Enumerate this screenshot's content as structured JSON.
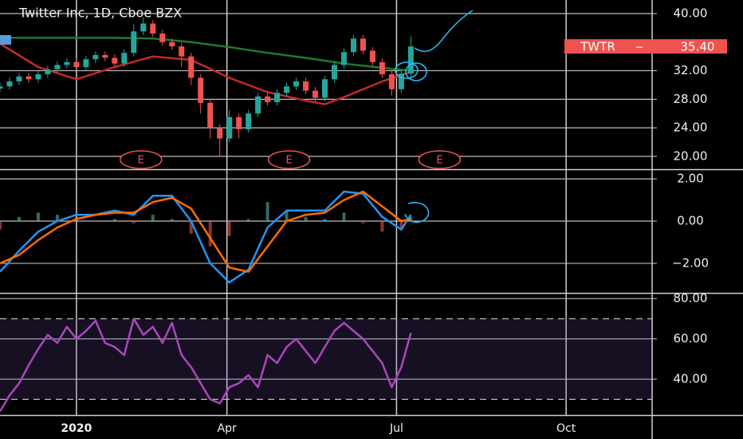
{
  "chart_data": [
    {
      "type": "candlestick",
      "title": "Twitter Inc, 1D, Cboe BZX",
      "xlim": [
        -32,
        241
      ],
      "xticks": [
        {
          "value": 0,
          "label": "2020"
        },
        {
          "value": 63,
          "label": "Apr"
        },
        {
          "value": 134,
          "label": "Jul"
        },
        {
          "value": 205,
          "label": "Oct"
        }
      ],
      "ylim": [
        18.2,
        41.9
      ],
      "yticks": [
        {
          "value": 20,
          "label": "20.00"
        },
        {
          "value": 24,
          "label": "24.00"
        },
        {
          "value": 28,
          "label": "28.00"
        },
        {
          "value": 32,
          "label": "32.00"
        },
        {
          "value": 40,
          "label": "40.00"
        }
      ],
      "up_color": "#26a69a",
      "down_color": "#ef5350",
      "x": [
        -32,
        -28,
        -24,
        -20,
        -16,
        -12,
        -8,
        -4,
        0,
        4,
        8,
        12,
        16,
        20,
        24,
        28,
        32,
        36,
        40,
        44,
        48,
        52,
        56,
        60,
        64,
        68,
        72,
        76,
        80,
        84,
        88,
        92,
        96,
        100,
        104,
        108,
        112,
        116,
        120,
        124,
        128,
        132,
        136,
        140
      ],
      "open": [
        29.5,
        29.8,
        30.5,
        31.2,
        30.8,
        31.5,
        32.2,
        32.8,
        33.2,
        32.5,
        33.6,
        34.2,
        33.8,
        33.0,
        34.5,
        37.5,
        38.6,
        37.2,
        36.0,
        35.4,
        34.0,
        31.0,
        27.5,
        24.0,
        22.5,
        25.5,
        23.8,
        26.0,
        28.4,
        27.6,
        28.9,
        29.8,
        30.5,
        29.2,
        28.2,
        30.8,
        32.8,
        34.6,
        36.5,
        34.8,
        33.2,
        31.5,
        29.4,
        31.6
      ],
      "high": [
        30.3,
        31.0,
        31.7,
        31.7,
        32.0,
        32.7,
        33.3,
        33.7,
        33.7,
        34.1,
        34.7,
        34.7,
        34.3,
        35.0,
        38.5,
        39.5,
        39.1,
        37.7,
        36.5,
        35.9,
        34.5,
        31.5,
        28.0,
        24.5,
        26.5,
        26.0,
        26.5,
        28.9,
        28.9,
        29.4,
        30.3,
        31.0,
        31.0,
        29.7,
        31.3,
        33.3,
        35.1,
        37.0,
        37.0,
        35.3,
        33.7,
        32.0,
        32.1,
        36.8
      ],
      "low": [
        29.0,
        29.3,
        30.0,
        30.3,
        30.3,
        31.0,
        31.7,
        32.3,
        32.0,
        32.0,
        33.1,
        33.3,
        32.5,
        32.5,
        34.0,
        37.0,
        36.7,
        35.5,
        34.9,
        32.5,
        30.0,
        26.0,
        22.5,
        20.0,
        22.0,
        22.5,
        23.3,
        25.5,
        27.1,
        27.1,
        28.4,
        29.3,
        28.7,
        27.7,
        27.7,
        30.3,
        32.3,
        34.1,
        34.3,
        32.7,
        31.0,
        28.5,
        28.9,
        31.1
      ],
      "close": [
        29.8,
        30.5,
        31.2,
        30.8,
        31.5,
        32.2,
        32.8,
        33.2,
        32.5,
        33.6,
        34.2,
        33.8,
        33.0,
        34.5,
        37.5,
        38.6,
        37.2,
        36.0,
        35.4,
        34.0,
        31.0,
        27.5,
        24.0,
        22.5,
        25.5,
        23.8,
        26.0,
        28.4,
        27.6,
        28.9,
        29.8,
        30.5,
        29.2,
        28.2,
        30.8,
        32.8,
        34.6,
        36.5,
        34.8,
        33.2,
        31.5,
        29.4,
        31.6,
        35.4
      ],
      "series": [
        {
          "color": "#1e7a2e",
          "x": [
            -32,
            -16,
            0,
            16,
            32,
            48,
            64,
            80,
            96,
            112,
            128,
            140
          ],
          "values": [
            36.6,
            36.6,
            36.6,
            36.6,
            36.5,
            36.0,
            35.3,
            34.5,
            33.8,
            33.0,
            32.4,
            32.0
          ]
        },
        {
          "color": "#c62828",
          "x": [
            -32,
            -16,
            0,
            16,
            32,
            48,
            64,
            80,
            96,
            104,
            112,
            128,
            140
          ],
          "values": [
            35.8,
            32.5,
            30.8,
            32.5,
            34.0,
            33.5,
            31.0,
            29.0,
            27.8,
            27.3,
            28.3,
            30.5,
            31.8
          ]
        }
      ],
      "events": [
        {
          "x": 27,
          "label": "E"
        },
        {
          "x": 89,
          "label": "E"
        },
        {
          "x": 152,
          "label": "E"
        }
      ],
      "price_tag": {
        "symbol": "TWTR",
        "value": 35.4,
        "label": "35.40",
        "color": "#ef5350"
      }
    },
    {
      "type": "line",
      "ylim": [
        -3.4,
        2.42
      ],
      "yticks": [
        {
          "value": -2,
          "label": "−2.00"
        },
        {
          "value": 0,
          "label": "0.00"
        },
        {
          "value": 2,
          "label": "2.00"
        }
      ],
      "series": [
        {
          "type": "histogram",
          "color": "#4db6ac",
          "negative_color": "#ef5350",
          "x": [
            -32,
            -24,
            -16,
            -8,
            0,
            8,
            16,
            24,
            32,
            40,
            48,
            56,
            64,
            72,
            80,
            88,
            96,
            104,
            112,
            120,
            128,
            136,
            140
          ],
          "values": [
            -0.4,
            0.2,
            0.4,
            0.3,
            0.2,
            0.0,
            0.1,
            -0.1,
            0.3,
            0.1,
            -0.6,
            -1.2,
            -0.7,
            0.1,
            0.9,
            0.5,
            0.2,
            0.1,
            0.4,
            -0.1,
            -0.5,
            -0.4,
            0.2
          ]
        },
        {
          "color": "#2196f3",
          "x": [
            -32,
            -24,
            -16,
            -8,
            0,
            8,
            16,
            24,
            32,
            40,
            48,
            56,
            64,
            72,
            80,
            88,
            96,
            104,
            112,
            120,
            128,
            136,
            140
          ],
          "values": [
            -2.4,
            -1.4,
            -0.5,
            0.0,
            0.3,
            0.3,
            0.5,
            0.3,
            1.2,
            1.2,
            0.0,
            -2.0,
            -2.9,
            -2.3,
            -0.3,
            0.5,
            0.5,
            0.5,
            1.4,
            1.3,
            0.2,
            -0.4,
            0.3
          ]
        },
        {
          "color": "#ff6d00",
          "x": [
            -32,
            -24,
            -16,
            -8,
            0,
            8,
            16,
            24,
            32,
            40,
            48,
            56,
            64,
            72,
            80,
            88,
            96,
            104,
            112,
            120,
            128,
            136,
            140
          ],
          "values": [
            -2.0,
            -1.6,
            -0.9,
            -0.3,
            0.1,
            0.3,
            0.4,
            0.4,
            0.9,
            1.1,
            0.6,
            -0.8,
            -2.2,
            -2.4,
            -1.2,
            0.0,
            0.3,
            0.4,
            1.0,
            1.4,
            0.7,
            0.0,
            0.1
          ]
        }
      ]
    },
    {
      "type": "line",
      "ylim": [
        22.2,
        82.4
      ],
      "yticks": [
        {
          "value": 40,
          "label": "40.00"
        },
        {
          "value": 60,
          "label": "60.00"
        },
        {
          "value": 80,
          "label": "80.00"
        }
      ],
      "band": [
        30,
        70
      ],
      "band_color": "#7e57c2",
      "series": [
        {
          "color": "#ab47bc",
          "x": [
            -32,
            -28,
            -24,
            -20,
            -16,
            -12,
            -8,
            -4,
            0,
            4,
            8,
            12,
            16,
            20,
            24,
            28,
            32,
            36,
            40,
            44,
            48,
            52,
            56,
            60,
            64,
            68,
            72,
            76,
            80,
            84,
            88,
            92,
            96,
            100,
            104,
            108,
            112,
            116,
            120,
            124,
            128,
            132,
            136,
            140
          ],
          "values": [
            24,
            32,
            38,
            47,
            55,
            62,
            58,
            66,
            60,
            64,
            69,
            58,
            56,
            52,
            70,
            62,
            66,
            58,
            68,
            52,
            46,
            38,
            30,
            28,
            36,
            38,
            42,
            36,
            52,
            48,
            56,
            60,
            54,
            48,
            56,
            64,
            68,
            64,
            60,
            54,
            48,
            36,
            46,
            63
          ]
        }
      ]
    }
  ]
}
